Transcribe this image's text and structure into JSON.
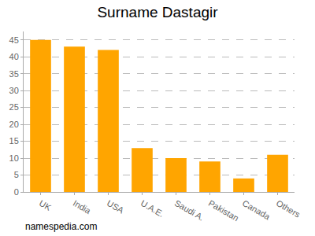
{
  "chart_data": {
    "type": "bar",
    "title": "Surname Dastagir",
    "categories": [
      "UK",
      "India",
      "USA",
      "U.A.E.",
      "Saudi A.",
      "Pakistan",
      "Canada",
      "Others"
    ],
    "values": [
      45,
      43,
      42,
      13,
      10,
      9,
      4,
      11
    ],
    "color": "#ffa500",
    "ylim": [
      0,
      47.5
    ],
    "yticks": [
      0,
      5,
      10,
      15,
      20,
      25,
      30,
      35,
      40,
      45
    ],
    "grid": true,
    "source": "namespedia.com"
  }
}
